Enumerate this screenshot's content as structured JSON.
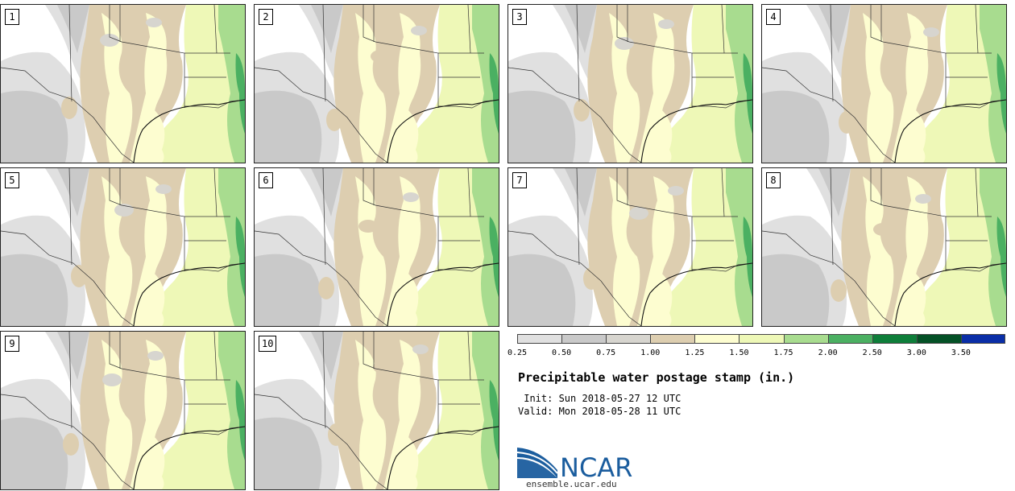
{
  "panels": [
    {
      "label": "1",
      "variant": 0
    },
    {
      "label": "2",
      "variant": 1
    },
    {
      "label": "3",
      "variant": 2
    },
    {
      "label": "4",
      "variant": 3
    },
    {
      "label": "5",
      "variant": 4
    },
    {
      "label": "6",
      "variant": 5
    },
    {
      "label": "7",
      "variant": 6
    },
    {
      "label": "8",
      "variant": 7
    },
    {
      "label": "9",
      "variant": 8
    },
    {
      "label": "10",
      "variant": 9
    }
  ],
  "legend": {
    "levels": [
      "0.25",
      "0.50",
      "0.75",
      "1.00",
      "1.25",
      "1.50",
      "1.75",
      "2.00",
      "2.50",
      "3.00",
      "3.50"
    ],
    "colors": [
      "#e0e0e0",
      "#c9c9c9",
      "#d7d5cf",
      "#ddceb0",
      "#fdfdd0",
      "#eef8b7",
      "#a8dc8f",
      "#4bb062",
      "#0e7e3a",
      "#045126",
      "#0a2ea7"
    ]
  },
  "title": "Precipitable water postage stamp (in.)",
  "init": " Init: Sun 2018-05-27 12 UTC",
  "valid": "Valid: Mon 2018-05-28 11 UTC",
  "logo": {
    "text": "NCAR",
    "url": "ensemble.ucar.edu",
    "color": "#1b5d9e"
  }
}
